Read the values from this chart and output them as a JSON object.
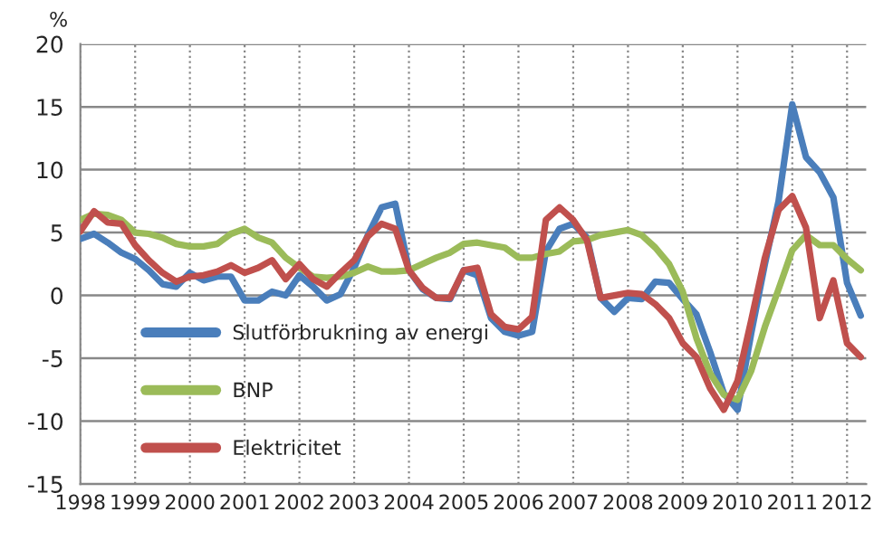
{
  "chart_data": {
    "type": "line",
    "ylabel": "%",
    "ylim": [
      -15,
      20
    ],
    "yticks": [
      -15,
      -10,
      -5,
      0,
      5,
      10,
      15,
      20
    ],
    "xlim": [
      1998,
      2012.35
    ],
    "xticks": [
      1998,
      1999,
      2000,
      2001,
      2002,
      2003,
      2004,
      2005,
      2006,
      2007,
      2008,
      2009,
      2010,
      2011,
      2012
    ],
    "grid": true,
    "legend": "left",
    "marker": "none",
    "line_style": "solid",
    "x": [
      1998,
      1998.25,
      1998.5,
      1998.75,
      1999,
      1999.25,
      1999.5,
      1999.75,
      2000,
      2000.25,
      2000.5,
      2000.75,
      2001,
      2001.25,
      2001.5,
      2001.75,
      2002,
      2002.25,
      2002.5,
      2002.75,
      2003,
      2003.25,
      2003.5,
      2003.75,
      2004,
      2004.25,
      2004.5,
      2004.75,
      2005,
      2005.25,
      2005.5,
      2005.75,
      2006,
      2006.25,
      2006.5,
      2006.75,
      2007,
      2007.25,
      2007.5,
      2007.75,
      2008,
      2008.25,
      2008.5,
      2008.75,
      2009,
      2009.25,
      2009.5,
      2009.75,
      2010,
      2010.25,
      2010.5,
      2010.75,
      2011,
      2011.25,
      2011.5,
      2011.75,
      2012,
      2012.25
    ],
    "series": [
      {
        "name": "Slutförbrukning av energi",
        "color": "#4a7ebb",
        "values": [
          4.5,
          4.9,
          4.2,
          3.4,
          2.9,
          2.0,
          0.9,
          0.7,
          1.8,
          1.2,
          1.5,
          1.5,
          -0.4,
          -0.4,
          0.3,
          0.0,
          1.6,
          0.7,
          -0.4,
          0.1,
          2.2,
          4.8,
          7.0,
          7.3,
          2.0,
          0.5,
          -0.2,
          -0.3,
          2.0,
          1.6,
          -1.8,
          -2.9,
          -3.2,
          -2.9,
          3.5,
          5.3,
          5.7,
          4.6,
          -0.2,
          -1.3,
          -0.2,
          -0.3,
          1.1,
          1.0,
          -0.3,
          -1.5,
          -4.5,
          -7.8,
          -9.1,
          -3.0,
          2.5,
          7.5,
          15.2,
          11.0,
          9.8,
          7.8,
          1.0,
          -1.6
        ]
      },
      {
        "name": "BNP",
        "color": "#9bbb59",
        "values": [
          6.0,
          6.5,
          6.4,
          6.0,
          5.0,
          4.9,
          4.6,
          4.1,
          3.9,
          3.9,
          4.1,
          4.9,
          5.3,
          4.6,
          4.2,
          3.0,
          2.2,
          1.5,
          1.4,
          1.5,
          1.8,
          2.3,
          1.9,
          1.9,
          2.0,
          2.5,
          3.0,
          3.4,
          4.1,
          4.2,
          4.0,
          3.8,
          3.0,
          3.0,
          3.3,
          3.5,
          4.3,
          4.4,
          4.8,
          5.0,
          5.2,
          4.8,
          3.8,
          2.5,
          0.3,
          -3.4,
          -6.2,
          -7.9,
          -8.3,
          -6.0,
          -2.5,
          0.5,
          3.6,
          4.8,
          4.0,
          4.0,
          2.9,
          2.0
        ]
      },
      {
        "name": "Elektricitet",
        "color": "#c0504d",
        "values": [
          5.1,
          6.7,
          5.8,
          5.7,
          4.0,
          2.8,
          1.8,
          1.1,
          1.5,
          1.6,
          1.9,
          2.4,
          1.8,
          2.2,
          2.8,
          1.3,
          2.5,
          1.3,
          0.7,
          1.8,
          2.8,
          4.7,
          5.7,
          5.3,
          2.0,
          0.6,
          -0.2,
          -0.2,
          2.0,
          2.2,
          -1.5,
          -2.5,
          -2.7,
          -1.7,
          6.0,
          7.0,
          6.0,
          4.4,
          -0.2,
          0.0,
          0.2,
          0.1,
          -0.7,
          -1.8,
          -3.8,
          -4.9,
          -7.4,
          -9.1,
          -6.8,
          -2.0,
          3.0,
          6.8,
          7.9,
          5.4,
          -1.8,
          1.2,
          -3.8,
          -4.9
        ]
      }
    ]
  }
}
